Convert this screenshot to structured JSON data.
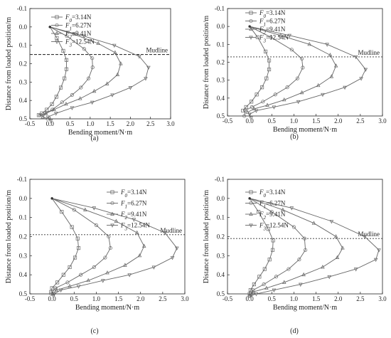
{
  "colors": {
    "axis": "#222222",
    "curve": "#666666",
    "mudline": "#333333"
  },
  "chart_data": [
    {
      "type": "line",
      "panel_label": "(a)",
      "xlabel": "Bending moment/N·m",
      "ylabel": "Distance from loaded position/m",
      "xlim": [
        -0.5,
        3.0
      ],
      "ylim": [
        -0.1,
        0.5
      ],
      "xticks": [
        "-0.5",
        "0.0",
        "0.5",
        "1.0",
        "1.5",
        "2.0",
        "2.5",
        "3.0"
      ],
      "yticks": [
        "-0.1",
        "0.0",
        "0.1",
        "0.2",
        "0.3",
        "0.4",
        "0.5"
      ],
      "mudline": {
        "label": "Mudline",
        "y": 0.15
      },
      "series": [
        {
          "label_var": "F",
          "label_sub": "0",
          "label_val": "=3.14N",
          "points": [
            [
              0,
              0
            ],
            [
              0.17,
              0.06
            ],
            [
              0.33,
              0.13
            ],
            [
              0.41,
              0.18
            ],
            [
              0.41,
              0.23
            ],
            [
              0.36,
              0.28
            ],
            [
              0.27,
              0.33
            ],
            [
              0.16,
              0.38
            ],
            [
              0.05,
              0.42
            ],
            [
              -0.08,
              0.45
            ],
            [
              -0.2,
              0.47
            ],
            [
              -0.28,
              0.48
            ]
          ]
        },
        {
          "label_var": "F",
          "label_sub": "1",
          "label_val": "=6.27N",
          "points": [
            [
              0,
              0
            ],
            [
              0.42,
              0.05
            ],
            [
              0.85,
              0.12
            ],
            [
              1.05,
              0.17
            ],
            [
              1.06,
              0.22
            ],
            [
              0.96,
              0.28
            ],
            [
              0.77,
              0.33
            ],
            [
              0.55,
              0.37
            ],
            [
              0.3,
              0.41
            ],
            [
              0.06,
              0.45
            ],
            [
              -0.12,
              0.47
            ],
            [
              -0.25,
              0.48
            ],
            [
              -0.06,
              0.5
            ]
          ]
        },
        {
          "label_var": "F",
          "label_sub": "2",
          "label_val": "=9.41N",
          "points": [
            [
              0,
              0
            ],
            [
              0.6,
              0.04
            ],
            [
              1.2,
              0.09
            ],
            [
              1.62,
              0.14
            ],
            [
              1.76,
              0.2
            ],
            [
              1.68,
              0.26
            ],
            [
              1.42,
              0.31
            ],
            [
              1.1,
              0.35
            ],
            [
              0.75,
              0.39
            ],
            [
              0.4,
              0.42
            ],
            [
              0.1,
              0.45
            ],
            [
              -0.1,
              0.47
            ],
            [
              -0.18,
              0.49
            ]
          ]
        },
        {
          "label_var": "F",
          "label_sub": "3",
          "label_val": "=12.54N",
          "points": [
            [
              0,
              0
            ],
            [
              0.85,
              0.05
            ],
            [
              1.6,
              0.1
            ],
            [
              2.22,
              0.16
            ],
            [
              2.45,
              0.22
            ],
            [
              2.38,
              0.28
            ],
            [
              2.0,
              0.33
            ],
            [
              1.55,
              0.37
            ],
            [
              1.05,
              0.41
            ],
            [
              0.55,
              0.44
            ],
            [
              0.15,
              0.47
            ],
            [
              -0.05,
              0.49
            ],
            [
              0.02,
              0.51
            ]
          ]
        }
      ]
    },
    {
      "type": "line",
      "panel_label": "(b)",
      "xlabel": "Bending moment/N·m",
      "ylabel": "Distance from loaded position/m",
      "xlim": [
        -0.5,
        3.0
      ],
      "ylim": [
        -0.1,
        0.5
      ],
      "xticks": [
        "-0.5",
        "0.0",
        "0.5",
        "1.0",
        "1.5",
        "2.0",
        "2.5",
        "3.0"
      ],
      "yticks": [
        "-0.1",
        "0.0",
        "0.1",
        "0.2",
        "0.3",
        "0.4",
        "0.5"
      ],
      "mudline": {
        "label": "Mudline",
        "y": 0.17
      },
      "series": [
        {
          "label_var": "F",
          "label_sub": "0",
          "label_val": "=3.14N",
          "points": [
            [
              0,
              0
            ],
            [
              0.18,
              0.06
            ],
            [
              0.36,
              0.14
            ],
            [
              0.44,
              0.19
            ],
            [
              0.44,
              0.24
            ],
            [
              0.38,
              0.29
            ],
            [
              0.28,
              0.34
            ],
            [
              0.16,
              0.38
            ],
            [
              0.04,
              0.42
            ],
            [
              -0.08,
              0.45
            ],
            [
              -0.15,
              0.47
            ]
          ]
        },
        {
          "label_var": "F",
          "label_sub": "1",
          "label_val": "=6.27N",
          "points": [
            [
              0,
              0
            ],
            [
              0.48,
              0.06
            ],
            [
              0.95,
              0.13
            ],
            [
              1.18,
              0.18
            ],
            [
              1.2,
              0.23
            ],
            [
              1.08,
              0.29
            ],
            [
              0.85,
              0.34
            ],
            [
              0.58,
              0.38
            ],
            [
              0.3,
              0.42
            ],
            [
              0.05,
              0.45
            ],
            [
              -0.1,
              0.47
            ],
            [
              -0.12,
              0.5
            ]
          ]
        },
        {
          "label_var": "F",
          "label_sub": "2",
          "label_val": "=9.41N",
          "points": [
            [
              0,
              0
            ],
            [
              0.7,
              0.05
            ],
            [
              1.35,
              0.1
            ],
            [
              1.82,
              0.16
            ],
            [
              1.95,
              0.22
            ],
            [
              1.85,
              0.28
            ],
            [
              1.55,
              0.33
            ],
            [
              1.18,
              0.37
            ],
            [
              0.78,
              0.41
            ],
            [
              0.4,
              0.44
            ],
            [
              0.1,
              0.46
            ],
            [
              -0.05,
              0.48
            ]
          ]
        },
        {
          "label_var": "F",
          "label_sub": "3",
          "label_val": "=12.54N",
          "points": [
            [
              0,
              0
            ],
            [
              0.9,
              0.05
            ],
            [
              1.75,
              0.1
            ],
            [
              2.4,
              0.17
            ],
            [
              2.62,
              0.24
            ],
            [
              2.52,
              0.29
            ],
            [
              2.15,
              0.34
            ],
            [
              1.65,
              0.38
            ],
            [
              1.1,
              0.42
            ],
            [
              0.55,
              0.45
            ],
            [
              0.15,
              0.47
            ],
            [
              0.0,
              0.49
            ],
            [
              0.03,
              0.51
            ]
          ]
        }
      ]
    },
    {
      "type": "line",
      "panel_label": "(c)",
      "xlabel": "Bending moment/N·m",
      "ylabel": "Distance from loaded position/m",
      "xlim": [
        -0.5,
        3.0
      ],
      "ylim": [
        -0.1,
        0.5
      ],
      "xticks": [
        "-0.5",
        "0.0",
        "0.5",
        "1.0",
        "1.5",
        "2.0",
        "2.5",
        "3.0"
      ],
      "yticks": [
        "-0.1",
        "0.0",
        "0.1",
        "0.2",
        "0.3",
        "0.4",
        "0.5"
      ],
      "mudline": {
        "label": "Mudline",
        "y": 0.19
      },
      "series": [
        {
          "label_var": "F",
          "label_sub": "0",
          "label_val": "=3.14N",
          "points": [
            [
              0,
              0
            ],
            [
              0.22,
              0.07
            ],
            [
              0.45,
              0.15
            ],
            [
              0.58,
              0.21
            ],
            [
              0.6,
              0.26
            ],
            [
              0.52,
              0.31
            ],
            [
              0.4,
              0.36
            ],
            [
              0.26,
              0.4
            ],
            [
              0.12,
              0.44
            ],
            [
              0.0,
              0.47
            ],
            [
              -0.02,
              0.49
            ]
          ]
        },
        {
          "label_var": "F",
          "label_sub": "1",
          "label_val": "=6.27N",
          "points": [
            [
              0,
              0
            ],
            [
              0.5,
              0.06
            ],
            [
              1.0,
              0.14
            ],
            [
              1.28,
              0.2
            ],
            [
              1.32,
              0.26
            ],
            [
              1.2,
              0.31
            ],
            [
              0.95,
              0.36
            ],
            [
              0.65,
              0.4
            ],
            [
              0.35,
              0.44
            ],
            [
              0.08,
              0.47
            ],
            [
              -0.02,
              0.5
            ]
          ]
        },
        {
          "label_var": "F",
          "label_sub": "2",
          "label_val": "=9.41N",
          "points": [
            [
              0,
              0
            ],
            [
              0.75,
              0.06
            ],
            [
              1.45,
              0.12
            ],
            [
              1.92,
              0.18
            ],
            [
              2.08,
              0.25
            ],
            [
              1.98,
              0.3
            ],
            [
              1.65,
              0.35
            ],
            [
              1.25,
              0.39
            ],
            [
              0.82,
              0.43
            ],
            [
              0.4,
              0.46
            ],
            [
              0.1,
              0.48
            ],
            [
              0.02,
              0.5
            ]
          ]
        },
        {
          "label_var": "F",
          "label_sub": "3",
          "label_val": "=12.54N",
          "points": [
            [
              0,
              0
            ],
            [
              0.95,
              0.05
            ],
            [
              1.85,
              0.11
            ],
            [
              2.55,
              0.18
            ],
            [
              2.82,
              0.26
            ],
            [
              2.72,
              0.31
            ],
            [
              2.3,
              0.36
            ],
            [
              1.75,
              0.4
            ],
            [
              1.15,
              0.43
            ],
            [
              0.6,
              0.46
            ],
            [
              0.2,
              0.48
            ],
            [
              0.05,
              0.5
            ],
            [
              0.03,
              0.51
            ]
          ]
        }
      ]
    },
    {
      "type": "line",
      "panel_label": "(d)",
      "xlabel": "Bending moment/N·m",
      "ylabel": "Distance from loaded position/m",
      "xlim": [
        -0.5,
        3.0
      ],
      "ylim": [
        -0.1,
        0.5
      ],
      "xticks": [
        "-0.5",
        "0.0",
        "0.5",
        "1.0",
        "1.5",
        "2.0",
        "2.5",
        "3.0"
      ],
      "yticks": [
        "-0.1",
        "0.0",
        "0.1",
        "0.2",
        "0.3",
        "0.4",
        "0.5"
      ],
      "mudline": {
        "label": "Mudline",
        "y": 0.21
      },
      "series": [
        {
          "label_var": "F",
          "label_sub": "0",
          "label_val": "=3.14N",
          "points": [
            [
              0,
              0
            ],
            [
              0.2,
              0.07
            ],
            [
              0.42,
              0.16
            ],
            [
              0.53,
              0.22
            ],
            [
              0.52,
              0.27
            ],
            [
              0.45,
              0.32
            ],
            [
              0.34,
              0.37
            ],
            [
              0.22,
              0.41
            ],
            [
              0.1,
              0.45
            ],
            [
              0.02,
              0.48
            ],
            [
              0.0,
              0.5
            ]
          ]
        },
        {
          "label_var": "F",
          "label_sub": "1",
          "label_val": "=6.27N",
          "points": [
            [
              0,
              0
            ],
            [
              0.5,
              0.07
            ],
            [
              1.0,
              0.15
            ],
            [
              1.24,
              0.21
            ],
            [
              1.26,
              0.27
            ],
            [
              1.12,
              0.32
            ],
            [
              0.88,
              0.37
            ],
            [
              0.6,
              0.41
            ],
            [
              0.32,
              0.45
            ],
            [
              0.08,
              0.48
            ],
            [
              0.0,
              0.51
            ]
          ]
        },
        {
          "label_var": "F",
          "label_sub": "2",
          "label_val": "=9.41N",
          "points": [
            [
              0,
              0
            ],
            [
              0.75,
              0.06
            ],
            [
              1.45,
              0.13
            ],
            [
              1.95,
              0.2
            ],
            [
              2.1,
              0.26
            ],
            [
              1.98,
              0.31
            ],
            [
              1.65,
              0.36
            ],
            [
              1.22,
              0.4
            ],
            [
              0.78,
              0.44
            ],
            [
              0.38,
              0.47
            ],
            [
              0.08,
              0.49
            ],
            [
              0.0,
              0.51
            ]
          ]
        },
        {
          "label_var": "F",
          "label_sub": "3",
          "label_val": "=12.54N",
          "points": [
            [
              0,
              0
            ],
            [
              0.95,
              0.05
            ],
            [
              1.85,
              0.12
            ],
            [
              2.6,
              0.2
            ],
            [
              2.92,
              0.27
            ],
            [
              2.85,
              0.32
            ],
            [
              2.4,
              0.37
            ],
            [
              1.8,
              0.41
            ],
            [
              1.15,
              0.45
            ],
            [
              0.55,
              0.48
            ],
            [
              0.15,
              0.5
            ],
            [
              0.03,
              0.51
            ]
          ]
        }
      ]
    }
  ]
}
